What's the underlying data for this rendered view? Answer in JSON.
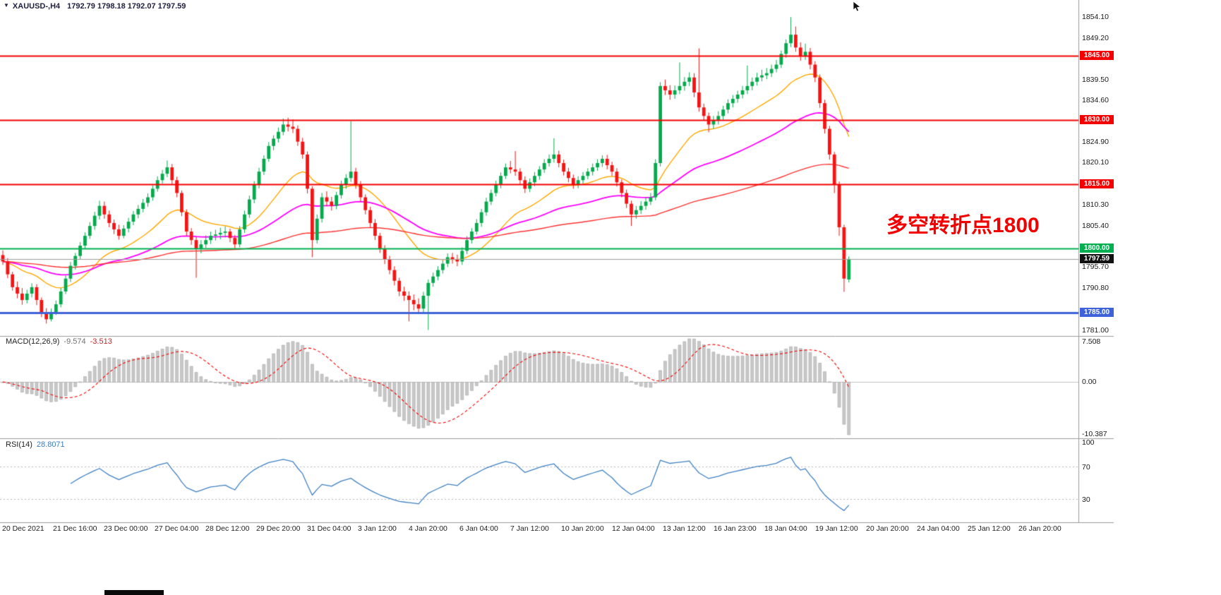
{
  "header": {
    "dropdown_marker": "▼",
    "symbol": "XAUUSD-,H4",
    "ohlc": "1792.79 1798.18 1792.07 1797.59"
  },
  "annotation": {
    "text": "多空转折点1800",
    "color": "#F20000"
  },
  "chart_data": {
    "type": "candlestick",
    "title": "XAUUSD- H4",
    "up_color": "#06A94D",
    "down_color": "#F41414",
    "price_axis": {
      "min": 1779.6,
      "max": 1858.1,
      "ticks": [
        [
          "1854.10",
          1854.1
        ],
        [
          "1849.20",
          1849.2
        ],
        [
          "1839.50",
          1839.5
        ],
        [
          "1834.60",
          1834.6
        ],
        [
          "1824.90",
          1824.9
        ],
        [
          "1820.10",
          1820.1
        ],
        [
          "1810.30",
          1810.3
        ],
        [
          "1805.40",
          1805.4
        ],
        [
          "1795.70",
          1795.7
        ],
        [
          "1790.80",
          1790.8
        ],
        [
          "1781.00",
          1781.0
        ]
      ]
    },
    "levels": [
      {
        "label": "1845.00",
        "value": 1845.0,
        "color": "#F40000",
        "width": 2
      },
      {
        "label": "1830.00",
        "value": 1830.0,
        "color": "#F40000",
        "width": 2
      },
      {
        "label": "1815.00",
        "value": 1815.0,
        "color": "#F40000",
        "width": 2
      },
      {
        "label": "1800.00",
        "value": 1800.0,
        "color": "#00B050",
        "width": 2
      },
      {
        "label": "1785.00",
        "value": 1785.0,
        "color": "#3E62D9",
        "width": 3
      }
    ],
    "bid": {
      "label": "1797.59",
      "value": 1797.59,
      "line_color": "#9B9B9B",
      "badge_color": "#111111"
    },
    "moving_averages": [
      {
        "method": "ema",
        "period": 21,
        "color": "#FFA800",
        "width": 1.4
      },
      {
        "method": "ema",
        "period": 55,
        "color": "#FF00FF",
        "width": 1.8
      },
      {
        "method": "ema",
        "period": 144,
        "color": "#FF3333",
        "width": 1.4
      }
    ],
    "indicators": {
      "macd": {
        "label": "MACD(12,26,9)",
        "value_main": "-9.574",
        "value_signal": "-3.513",
        "axis_labels": [
          "7.508",
          "0.00",
          "-10.387"
        ],
        "hist_color": "#C8C8C8",
        "hist_border": "#A8A8A8",
        "signal_color": "#F40000",
        "fast": 12,
        "slow": 26,
        "signal": 9
      },
      "rsi": {
        "label": "RSI(14)",
        "value": "28.8071",
        "period": 14,
        "color": "#4080C0",
        "levels": [
          70,
          30
        ],
        "axis_labels": [
          "100",
          "70",
          "30"
        ],
        "range": [
          0,
          100
        ]
      }
    },
    "time_axis": {
      "labels": [
        "20 Dec 2021",
        "21 Dec 16:00",
        "23 Dec 00:00",
        "27 Dec 04:00",
        "28 Dec 12:00",
        "29 Dec 20:00",
        "31 Dec 04:00",
        "3 Jan 12:00",
        "4 Jan 20:00",
        "6 Jan 04:00",
        "7 Jan 12:00",
        "10 Jan 20:00",
        "12 Jan 04:00",
        "13 Jan 12:00",
        "16 Jan 23:00",
        "18 Jan 04:00",
        "19 Jan 12:00",
        "20 Jan 20:00",
        "24 Jan 04:00",
        "25 Jan 12:00",
        "26 Jan 20:00"
      ]
    },
    "candles": [
      [
        1798.5,
        1799.6,
        1796.2,
        1797.0
      ],
      [
        1797.0,
        1797.8,
        1793.1,
        1794.0
      ],
      [
        1794.0,
        1794.6,
        1790.2,
        1791.0
      ],
      [
        1791.0,
        1792.3,
        1788.4,
        1789.5
      ],
      [
        1789.5,
        1790.8,
        1786.9,
        1788.0
      ],
      [
        1788.0,
        1790.4,
        1787.2,
        1789.5
      ],
      [
        1789.5,
        1791.9,
        1788.6,
        1791.0
      ],
      [
        1791.0,
        1791.7,
        1786.8,
        1788.0
      ],
      [
        1788.0,
        1788.6,
        1784.0,
        1785.0
      ],
      [
        1785.0,
        1786.1,
        1782.5,
        1783.5
      ],
      [
        1783.5,
        1786.0,
        1783.0,
        1785.2
      ],
      [
        1785.2,
        1787.9,
        1784.5,
        1787.0
      ],
      [
        1787.0,
        1790.8,
        1786.3,
        1790.0
      ],
      [
        1790.0,
        1793.7,
        1789.4,
        1793.0
      ],
      [
        1793.0,
        1796.9,
        1792.2,
        1796.0
      ],
      [
        1796.0,
        1799.0,
        1795.1,
        1798.3
      ],
      [
        1798.3,
        1801.5,
        1797.6,
        1800.7
      ],
      [
        1800.7,
        1803.8,
        1799.9,
        1803.0
      ],
      [
        1803.0,
        1806.2,
        1802.3,
        1805.3
      ],
      [
        1805.3,
        1808.6,
        1804.4,
        1807.7
      ],
      [
        1807.7,
        1811.2,
        1806.8,
        1810.0
      ],
      [
        1810.0,
        1811.0,
        1807.0,
        1808.0
      ],
      [
        1808.0,
        1808.9,
        1805.0,
        1806.0
      ],
      [
        1806.0,
        1806.8,
        1803.4,
        1804.5
      ],
      [
        1804.5,
        1805.6,
        1802.1,
        1803.0
      ],
      [
        1803.0,
        1805.5,
        1802.4,
        1804.7
      ],
      [
        1804.7,
        1807.2,
        1803.8,
        1806.3
      ],
      [
        1806.3,
        1808.8,
        1805.5,
        1808.0
      ],
      [
        1808.0,
        1810.2,
        1807.1,
        1809.3
      ],
      [
        1809.3,
        1811.6,
        1808.5,
        1810.7
      ],
      [
        1810.7,
        1812.9,
        1809.8,
        1812.0
      ],
      [
        1812.0,
        1814.8,
        1811.2,
        1814.0
      ],
      [
        1814.0,
        1816.9,
        1813.3,
        1816.0
      ],
      [
        1816.0,
        1818.4,
        1815.2,
        1817.5
      ],
      [
        1817.5,
        1820.6,
        1816.7,
        1819.0
      ],
      [
        1819.0,
        1819.8,
        1815.0,
        1816.0
      ],
      [
        1816.0,
        1816.8,
        1812.0,
        1813.0
      ],
      [
        1813.0,
        1813.6,
        1807.6,
        1808.5
      ],
      [
        1808.5,
        1809.2,
        1803.0,
        1804.0
      ],
      [
        1804.0,
        1804.8,
        1800.9,
        1802.0
      ],
      [
        1802.0,
        1802.7,
        1793.2,
        1800.0
      ],
      [
        1800.0,
        1802.0,
        1798.9,
        1801.0
      ],
      [
        1801.0,
        1803.1,
        1800.2,
        1802.0
      ],
      [
        1802.0,
        1804.0,
        1801.1,
        1803.0
      ],
      [
        1803.0,
        1804.4,
        1801.9,
        1803.3
      ],
      [
        1803.3,
        1804.9,
        1802.2,
        1803.7
      ],
      [
        1803.7,
        1805.2,
        1802.6,
        1804.0
      ],
      [
        1804.0,
        1804.7,
        1801.5,
        1802.5
      ],
      [
        1802.5,
        1803.2,
        1799.9,
        1801.0
      ],
      [
        1801.0,
        1805.3,
        1800.3,
        1804.5
      ],
      [
        1804.5,
        1808.9,
        1803.7,
        1808.0
      ],
      [
        1808.0,
        1812.4,
        1807.2,
        1811.5
      ],
      [
        1811.5,
        1815.8,
        1810.6,
        1815.0
      ],
      [
        1815.0,
        1818.9,
        1814.1,
        1818.0
      ],
      [
        1818.0,
        1821.8,
        1817.2,
        1821.0
      ],
      [
        1821.0,
        1824.9,
        1820.3,
        1824.0
      ],
      [
        1824.0,
        1826.5,
        1823.0,
        1825.7
      ],
      [
        1825.7,
        1828.3,
        1824.8,
        1827.3
      ],
      [
        1827.3,
        1830.4,
        1826.5,
        1829.0
      ],
      [
        1829.0,
        1830.6,
        1827.4,
        1828.5
      ],
      [
        1828.5,
        1830.2,
        1827.0,
        1828.0
      ],
      [
        1828.0,
        1828.8,
        1824.0,
        1825.0
      ],
      [
        1825.0,
        1825.9,
        1821.0,
        1822.0
      ],
      [
        1822.0,
        1822.7,
        1812.9,
        1814.0
      ],
      [
        1814.0,
        1814.6,
        1798.0,
        1802.0
      ],
      [
        1802.0,
        1808.0,
        1801.2,
        1807.0
      ],
      [
        1807.0,
        1813.0,
        1806.1,
        1812.0
      ],
      [
        1812.0,
        1813.4,
        1809.9,
        1811.0
      ],
      [
        1811.0,
        1812.1,
        1808.9,
        1810.0
      ],
      [
        1810.0,
        1813.3,
        1809.2,
        1812.5
      ],
      [
        1812.5,
        1815.9,
        1811.7,
        1815.0
      ],
      [
        1815.0,
        1817.4,
        1814.0,
        1816.5
      ],
      [
        1816.5,
        1829.8,
        1815.6,
        1818.0
      ],
      [
        1818.0,
        1818.9,
        1814.0,
        1815.0
      ],
      [
        1815.0,
        1815.8,
        1811.0,
        1812.0
      ],
      [
        1812.0,
        1812.7,
        1808.0,
        1809.0
      ],
      [
        1809.0,
        1809.8,
        1805.0,
        1806.0
      ],
      [
        1806.0,
        1806.9,
        1802.0,
        1803.0
      ],
      [
        1803.0,
        1803.7,
        1799.0,
        1800.0
      ],
      [
        1800.0,
        1800.8,
        1796.4,
        1797.5
      ],
      [
        1797.5,
        1798.3,
        1794.0,
        1795.0
      ],
      [
        1795.0,
        1795.9,
        1791.4,
        1792.5
      ],
      [
        1792.5,
        1793.2,
        1788.9,
        1790.0
      ],
      [
        1790.0,
        1791.1,
        1787.8,
        1789.0
      ],
      [
        1789.0,
        1790.0,
        1783.0,
        1788.0
      ],
      [
        1788.0,
        1789.3,
        1785.6,
        1787.0
      ],
      [
        1787.0,
        1788.4,
        1784.7,
        1786.0
      ],
      [
        1786.0,
        1789.9,
        1784.9,
        1789.0
      ],
      [
        1789.0,
        1792.8,
        1781.0,
        1792.0
      ],
      [
        1792.0,
        1794.4,
        1791.1,
        1793.5
      ],
      [
        1793.5,
        1795.9,
        1792.6,
        1795.0
      ],
      [
        1795.0,
        1797.3,
        1794.2,
        1796.5
      ],
      [
        1796.5,
        1798.9,
        1795.7,
        1798.0
      ],
      [
        1798.0,
        1799.0,
        1796.5,
        1797.5
      ],
      [
        1797.5,
        1798.6,
        1795.9,
        1797.0
      ],
      [
        1797.0,
        1800.3,
        1796.2,
        1799.5
      ],
      [
        1799.5,
        1802.9,
        1798.7,
        1802.0
      ],
      [
        1802.0,
        1804.8,
        1801.2,
        1804.0
      ],
      [
        1804.0,
        1806.9,
        1803.3,
        1806.0
      ],
      [
        1806.0,
        1809.3,
        1805.1,
        1808.5
      ],
      [
        1808.5,
        1811.9,
        1807.7,
        1811.0
      ],
      [
        1811.0,
        1813.8,
        1810.2,
        1813.0
      ],
      [
        1813.0,
        1815.9,
        1812.2,
        1815.0
      ],
      [
        1815.0,
        1817.8,
        1814.1,
        1817.0
      ],
      [
        1817.0,
        1819.9,
        1816.3,
        1819.0
      ],
      [
        1819.0,
        1820.5,
        1817.6,
        1818.5
      ],
      [
        1818.5,
        1822.8,
        1817.0,
        1818.0
      ],
      [
        1818.0,
        1818.8,
        1815.0,
        1816.0
      ],
      [
        1816.0,
        1816.9,
        1813.0,
        1814.0
      ],
      [
        1814.0,
        1816.4,
        1813.2,
        1815.5
      ],
      [
        1815.5,
        1817.9,
        1814.6,
        1817.0
      ],
      [
        1817.0,
        1819.3,
        1816.1,
        1818.5
      ],
      [
        1818.5,
        1820.9,
        1817.7,
        1820.0
      ],
      [
        1820.0,
        1822.0,
        1819.2,
        1821.0
      ],
      [
        1821.0,
        1825.8,
        1820.1,
        1822.0
      ],
      [
        1822.0,
        1822.9,
        1819.0,
        1820.0
      ],
      [
        1820.0,
        1820.8,
        1817.1,
        1818.0
      ],
      [
        1818.0,
        1818.9,
        1815.5,
        1816.5
      ],
      [
        1816.5,
        1817.3,
        1814.0,
        1815.0
      ],
      [
        1815.0,
        1816.9,
        1814.1,
        1816.0
      ],
      [
        1816.0,
        1817.9,
        1815.2,
        1817.0
      ],
      [
        1817.0,
        1818.8,
        1816.2,
        1818.0
      ],
      [
        1818.0,
        1819.9,
        1817.1,
        1819.0
      ],
      [
        1819.0,
        1820.9,
        1818.2,
        1820.0
      ],
      [
        1820.0,
        1821.8,
        1819.1,
        1821.0
      ],
      [
        1821.0,
        1821.9,
        1818.5,
        1819.5
      ],
      [
        1819.5,
        1820.3,
        1817.0,
        1818.0
      ],
      [
        1818.0,
        1818.8,
        1814.5,
        1815.5
      ],
      [
        1815.5,
        1816.2,
        1812.0,
        1813.0
      ],
      [
        1813.0,
        1813.8,
        1809.5,
        1810.5
      ],
      [
        1810.5,
        1811.2,
        1805.3,
        1808.0
      ],
      [
        1808.0,
        1810.0,
        1807.0,
        1809.0
      ],
      [
        1809.0,
        1811.1,
        1808.1,
        1810.0
      ],
      [
        1810.0,
        1812.0,
        1809.1,
        1811.0
      ],
      [
        1811.0,
        1813.0,
        1810.2,
        1812.0
      ],
      [
        1812.0,
        1820.9,
        1811.3,
        1820.0
      ],
      [
        1820.0,
        1838.9,
        1819.2,
        1838.0
      ],
      [
        1838.0,
        1839.5,
        1835.9,
        1837.0
      ],
      [
        1837.0,
        1838.2,
        1834.8,
        1836.0
      ],
      [
        1836.0,
        1838.1,
        1835.0,
        1837.0
      ],
      [
        1837.0,
        1843.5,
        1836.1,
        1838.0
      ],
      [
        1838.0,
        1840.1,
        1836.9,
        1839.0
      ],
      [
        1839.0,
        1841.2,
        1838.0,
        1840.0
      ],
      [
        1840.0,
        1841.0,
        1835.4,
        1836.5
      ],
      [
        1836.5,
        1846.8,
        1832.0,
        1833.0
      ],
      [
        1833.0,
        1833.9,
        1830.0,
        1831.0
      ],
      [
        1831.0,
        1831.8,
        1827.2,
        1829.0
      ],
      [
        1829.0,
        1831.0,
        1828.0,
        1830.0
      ],
      [
        1830.0,
        1832.1,
        1829.0,
        1831.0
      ],
      [
        1831.0,
        1833.4,
        1830.1,
        1832.5
      ],
      [
        1832.5,
        1834.9,
        1831.6,
        1834.0
      ],
      [
        1834.0,
        1835.9,
        1833.0,
        1835.0
      ],
      [
        1835.0,
        1836.9,
        1834.1,
        1836.0
      ],
      [
        1836.0,
        1838.0,
        1835.1,
        1837.0
      ],
      [
        1837.0,
        1842.8,
        1836.1,
        1838.0
      ],
      [
        1838.0,
        1840.0,
        1837.0,
        1839.0
      ],
      [
        1839.0,
        1841.1,
        1838.1,
        1840.0
      ],
      [
        1840.0,
        1841.8,
        1839.1,
        1840.5
      ],
      [
        1840.5,
        1842.2,
        1839.6,
        1841.0
      ],
      [
        1841.0,
        1843.0,
        1840.1,
        1842.0
      ],
      [
        1842.0,
        1844.1,
        1841.2,
        1843.0
      ],
      [
        1843.0,
        1846.3,
        1842.2,
        1845.5
      ],
      [
        1845.5,
        1848.9,
        1844.6,
        1848.0
      ],
      [
        1848.0,
        1854.1,
        1847.1,
        1850.0
      ],
      [
        1850.0,
        1851.9,
        1846.0,
        1847.0
      ],
      [
        1847.0,
        1848.2,
        1843.9,
        1845.0
      ],
      [
        1845.0,
        1847.9,
        1844.1,
        1846.0
      ],
      [
        1846.0,
        1846.9,
        1841.9,
        1843.0
      ],
      [
        1843.0,
        1843.8,
        1838.9,
        1840.0
      ],
      [
        1840.0,
        1840.7,
        1832.9,
        1834.0
      ],
      [
        1834.0,
        1834.8,
        1826.9,
        1828.0
      ],
      [
        1828.0,
        1828.7,
        1820.8,
        1822.0
      ],
      [
        1822.0,
        1822.6,
        1813.0,
        1815.0
      ],
      [
        1815.0,
        1815.7,
        1803.0,
        1805.0
      ],
      [
        1805.0,
        1805.6,
        1789.9,
        1793.0
      ],
      [
        1792.8,
        1798.2,
        1792.1,
        1797.6
      ]
    ]
  }
}
